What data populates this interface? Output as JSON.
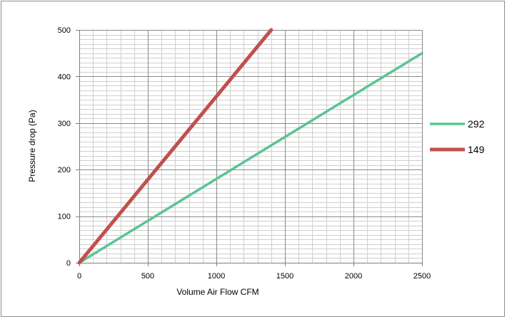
{
  "chart_data": {
    "type": "line",
    "xlabel": "Volume Air Flow  CFM",
    "ylabel": "Pressure drop (Pa)",
    "xlim": [
      0,
      2500
    ],
    "ylim": [
      0,
      500
    ],
    "x_ticks": [
      0,
      500,
      1000,
      1500,
      2000,
      2500
    ],
    "y_ticks": [
      0,
      100,
      200,
      300,
      400,
      500
    ],
    "x_minor_step": 100,
    "y_minor_step": 10,
    "grid": true,
    "legend_position": "right",
    "series": [
      {
        "name": "292",
        "color": "#5cc393",
        "x": [
          0,
          2500
        ],
        "y": [
          0,
          450
        ]
      },
      {
        "name": "149",
        "color": "#c0504d",
        "x": [
          0,
          1400
        ],
        "y": [
          0,
          500
        ]
      }
    ]
  }
}
